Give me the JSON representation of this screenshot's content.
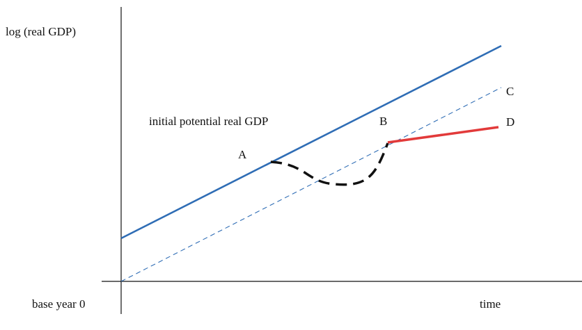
{
  "axes": {
    "y_label": "log (real GDP)",
    "x_label": "time",
    "origin_label": "base year 0"
  },
  "curves": {
    "initial_potential_label": "initial potential real GDP",
    "colors": {
      "potential": "#2f6db5",
      "recession_path": "#111111",
      "new_path": "#e23a3a"
    }
  },
  "points": {
    "a": "A",
    "b": "B",
    "c": "C",
    "d": "D"
  }
}
